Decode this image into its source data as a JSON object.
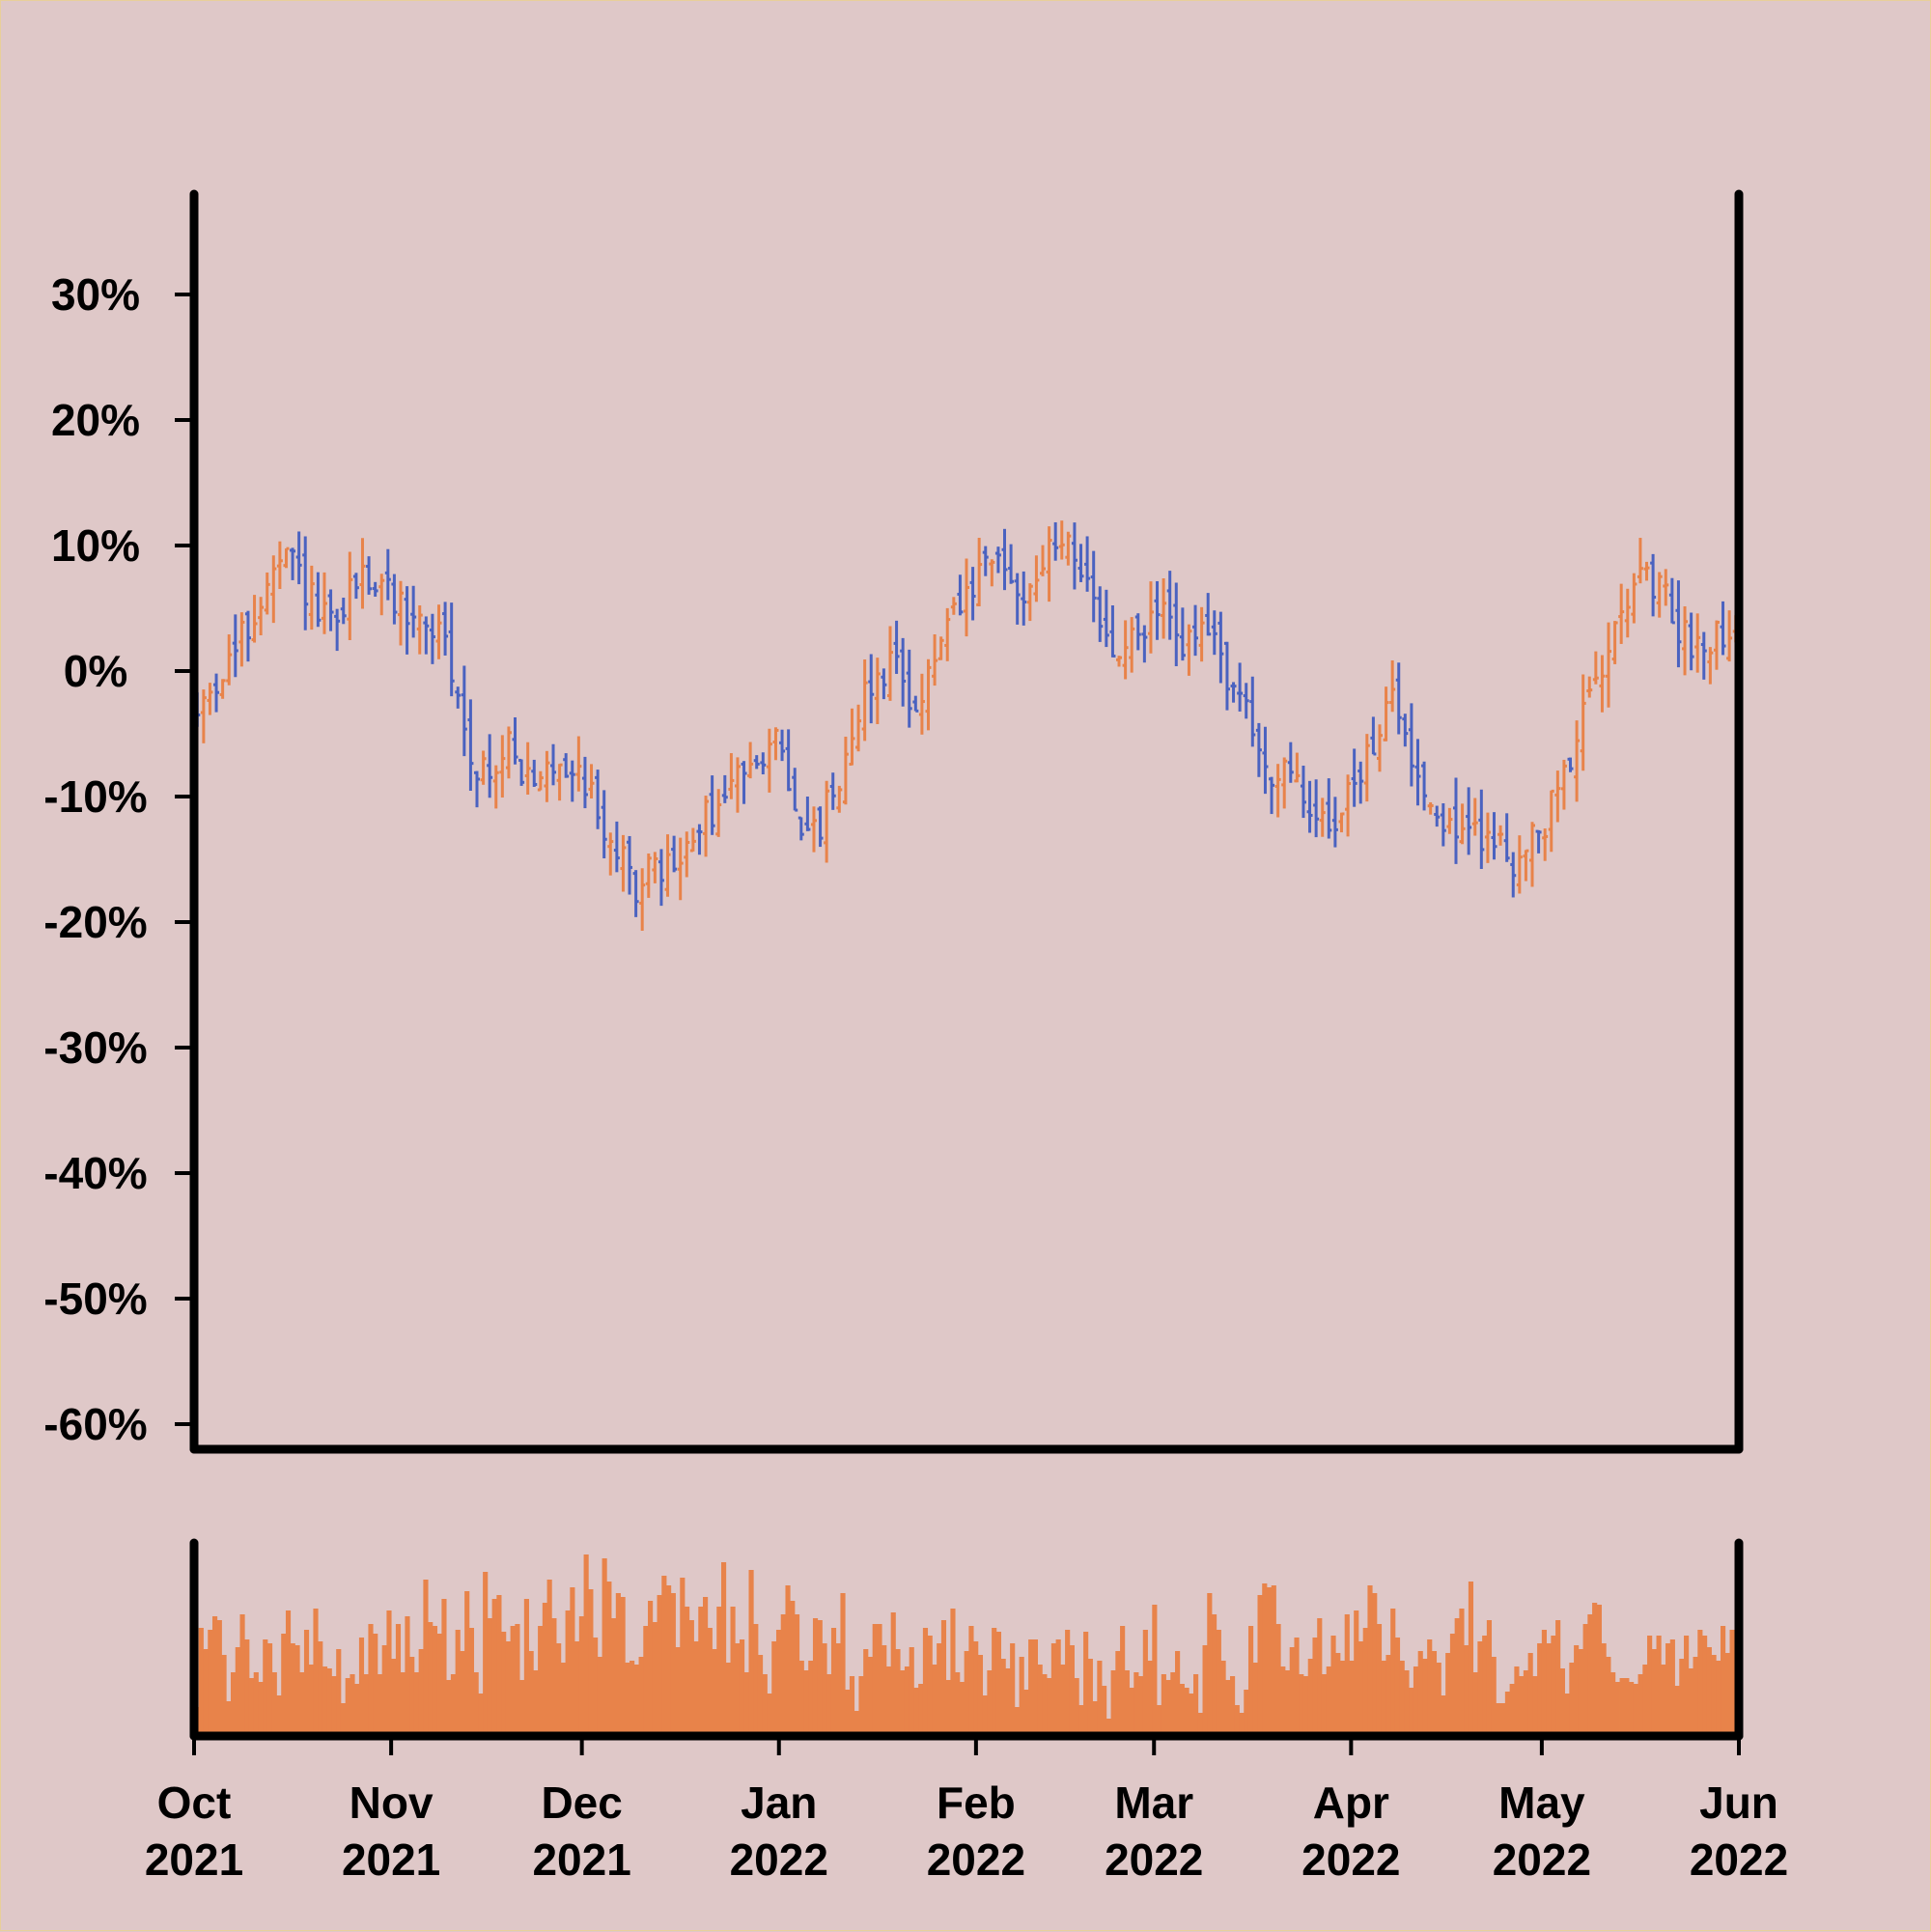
{
  "chart_data": [
    {
      "type": "ohlc",
      "title": "",
      "xlabel": "",
      "ylabel": "",
      "x_start": "2021-10-01",
      "x_end": "2022-06-01",
      "x_axis_date_format": "month-year",
      "ylim": [
        -62,
        38
      ],
      "y_ticks": [
        -60,
        -50,
        -40,
        -30,
        -20,
        -10,
        0,
        10,
        20,
        30
      ],
      "y_tick_labels": [
        "-60%",
        "-50%",
        "-40%",
        "-30%",
        "-20%",
        "-10%",
        "0%",
        "10%",
        "20%",
        "30%"
      ],
      "grid": false,
      "legend": "none",
      "colors": {
        "up": "#e8834a",
        "down": "#4a62c0"
      },
      "close_path": [
        [
          "2021-10-01",
          -4
        ],
        [
          "2021-10-04",
          -1
        ],
        [
          "2021-10-08",
          2
        ],
        [
          "2021-10-13",
          7
        ],
        [
          "2021-10-16",
          9
        ],
        [
          "2021-10-20",
          5
        ],
        [
          "2021-10-23",
          3
        ],
        [
          "2021-10-27",
          8
        ],
        [
          "2021-11-01",
          6
        ],
        [
          "2021-11-05",
          4
        ],
        [
          "2021-11-09",
          3
        ],
        [
          "2021-11-13",
          -6
        ],
        [
          "2021-11-17",
          -9
        ],
        [
          "2021-11-20",
          -5
        ],
        [
          "2021-11-23",
          -10
        ],
        [
          "2021-11-27",
          -7
        ],
        [
          "2021-12-01",
          -8
        ],
        [
          "2021-12-05",
          -13
        ],
        [
          "2021-12-09",
          -17
        ],
        [
          "2021-12-13",
          -16
        ],
        [
          "2021-12-17",
          -15
        ],
        [
          "2021-12-20",
          -12
        ],
        [
          "2021-12-24",
          -10
        ],
        [
          "2021-12-28",
          -6
        ],
        [
          "2022-01-01",
          -6
        ],
        [
          "2022-01-04",
          -11
        ],
        [
          "2022-01-06",
          -14
        ],
        [
          "2022-01-10",
          -9
        ],
        [
          "2022-01-14",
          -2
        ],
        [
          "2022-01-19",
          1
        ],
        [
          "2022-01-23",
          -3
        ],
        [
          "2022-01-27",
          3
        ],
        [
          "2022-01-31",
          6
        ],
        [
          "2022-02-04",
          9
        ],
        [
          "2022-02-08",
          6
        ],
        [
          "2022-02-12",
          9
        ],
        [
          "2022-02-16",
          11
        ],
        [
          "2022-02-19",
          5
        ],
        [
          "2022-02-23",
          1
        ],
        [
          "2022-02-27",
          3
        ],
        [
          "2022-03-02",
          5
        ],
        [
          "2022-03-06",
          2
        ],
        [
          "2022-03-10",
          3
        ],
        [
          "2022-03-15",
          -3
        ],
        [
          "2022-03-19",
          -8
        ],
        [
          "2022-03-23",
          -9
        ],
        [
          "2022-03-27",
          -12
        ],
        [
          "2022-03-31",
          -11
        ],
        [
          "2022-04-04",
          -6
        ],
        [
          "2022-04-07",
          -2
        ],
        [
          "2022-04-10",
          -6
        ],
        [
          "2022-04-14",
          -11
        ],
        [
          "2022-04-18",
          -13
        ],
        [
          "2022-04-22",
          -13
        ],
        [
          "2022-04-27",
          -15
        ],
        [
          "2022-05-01",
          -13
        ],
        [
          "2022-05-05",
          -7
        ],
        [
          "2022-05-09",
          -2
        ],
        [
          "2022-05-13",
          6
        ],
        [
          "2022-05-17",
          7
        ],
        [
          "2022-05-20",
          6
        ],
        [
          "2022-05-24",
          2
        ],
        [
          "2022-05-28",
          3
        ],
        [
          "2022-06-01",
          4
        ]
      ]
    },
    {
      "type": "bar",
      "title": "",
      "xlabel": "",
      "ylabel": "",
      "x_start": "2021-10-01",
      "x_end": "2022-06-01",
      "x_ticks": [
        "2021-10-01",
        "2021-11-01",
        "2021-12-01",
        "2022-01-01",
        "2022-02-01",
        "2022-03-01",
        "2022-04-01",
        "2022-05-01",
        "2022-06-01"
      ],
      "x_tick_labels": [
        [
          "Oct",
          "2021"
        ],
        [
          "Nov",
          "2021"
        ],
        [
          "Dec",
          "2021"
        ],
        [
          "Jan",
          "2022"
        ],
        [
          "Feb",
          "2022"
        ],
        [
          "Mar",
          "2022"
        ],
        [
          "Apr",
          "2022"
        ],
        [
          "May",
          "2022"
        ],
        [
          "Jun",
          "2022"
        ]
      ],
      "y_ticks": [],
      "ylim": [
        0,
        1
      ],
      "color": "#e8834a",
      "grid": false,
      "legend": "none",
      "values": [
        0.15,
        0.56,
        0.45,
        0.55,
        0.62,
        0.6,
        0.42,
        0.18,
        0.33,
        0.46,
        0.63,
        0.5,
        0.3,
        0.33,
        0.28,
        0.5,
        0.48,
        0.33,
        0.21,
        0.53,
        0.65,
        0.48,
        0.47,
        0.33,
        0.55,
        0.37,
        0.66,
        0.49,
        0.36,
        0.35,
        0.31,
        0.45,
        0.17,
        0.3,
        0.32,
        0.27,
        0.51,
        0.32,
        0.58,
        0.53,
        0.32,
        0.47,
        0.65,
        0.4,
        0.58,
        0.33,
        0.62,
        0.41,
        0.33,
        0.45,
        0.81,
        0.59,
        0.57,
        0.53,
        0.71,
        0.29,
        0.32,
        0.55,
        0.44,
        0.75,
        0.56,
        0.33,
        0.22,
        0.85,
        0.61,
        0.71,
        0.73,
        0.54,
        0.49,
        0.57,
        0.58,
        0.29,
        0.71,
        0.44,
        0.34,
        0.57,
        0.69,
        0.81,
        0.61,
        0.48,
        0.38,
        0.65,
        0.77,
        0.49,
        0.62,
        0.94,
        0.76,
        0.51,
        0.41,
        0.92,
        0.8,
        0.61,
        0.74,
        0.72,
        0.38,
        0.39,
        0.37,
        0.41,
        0.57,
        0.7,
        0.59,
        0.73,
        0.83,
        0.78,
        0.74,
        0.46,
        0.82,
        0.67,
        0.6,
        0.49,
        0.67,
        0.72,
        0.56,
        0.45,
        0.67,
        0.9,
        0.38,
        0.67,
        0.48,
        0.5,
        0.33,
        0.86,
        0.58,
        0.42,
        0.32,
        0.22,
        0.49,
        0.55,
        0.63,
        0.78,
        0.7,
        0.63,
        0.39,
        0.34,
        0.39,
        0.61,
        0.6,
        0.48,
        0.32,
        0.56,
        0.48,
        0.74,
        0.24,
        0.31,
        0.13,
        0.31,
        0.45,
        0.41,
        0.58,
        0.58,
        0.47,
        0.36,
        0.64,
        0.45,
        0.34,
        0.36,
        0.46,
        0.25,
        0.27,
        0.56,
        0.52,
        0.37,
        0.48,
        0.6,
        0.29,
        0.66,
        0.33,
        0.28,
        0.44,
        0.57,
        0.49,
        0.42,
        0.21,
        0.34,
        0.56,
        0.54,
        0.4,
        0.35,
        0.48,
        0.15,
        0.41,
        0.24,
        0.5,
        0.5,
        0.37,
        0.32,
        0.3,
        0.48,
        0.5,
        0.37,
        0.55,
        0.47,
        0.3,
        0.16,
        0.54,
        0.4,
        0.18,
        0.39,
        0.26,
        0.09,
        0.34,
        0.44,
        0.57,
        0.34,
        0.25,
        0.33,
        0.31,
        0.55,
        0.39,
        0.68,
        0.16,
        0.32,
        0.29,
        0.33,
        0.44,
        0.27,
        0.25,
        0.22,
        0.32,
        0.12,
        0.47,
        0.74,
        0.63,
        0.55,
        0.39,
        0.29,
        0.31,
        0.16,
        0.12,
        0.24,
        0.57,
        0.38,
        0.73,
        0.79,
        0.77,
        0.78,
        0.58,
        0.36,
        0.34,
        0.46,
        0.51,
        0.32,
        0.31,
        0.4,
        0.51,
        0.61,
        0.32,
        0.36,
        0.52,
        0.43,
        0.39,
        0.63,
        0.39,
        0.65,
        0.49,
        0.56,
        0.78,
        0.74,
        0.58,
        0.39,
        0.42,
        0.66,
        0.51,
        0.39,
        0.34,
        0.25,
        0.36,
        0.44,
        0.4,
        0.5,
        0.44,
        0.38,
        0.21,
        0.43,
        0.53,
        0.61,
        0.66,
        0.47,
        0.8,
        0.33,
        0.49,
        0.52,
        0.6,
        0.41,
        0.17,
        0.17,
        0.23,
        0.27,
        0.36,
        0.31,
        0.34,
        0.43,
        0.31,
        0.48,
        0.55,
        0.48,
        0.52,
        0.6,
        0.35,
        0.22,
        0.38,
        0.47,
        0.45,
        0.58,
        0.63,
        0.69,
        0.68,
        0.48,
        0.41,
        0.33,
        0.28,
        0.3,
        0.3,
        0.28,
        0.27,
        0.32,
        0.37,
        0.52,
        0.45,
        0.52,
        0.37,
        0.48,
        0.5,
        0.26,
        0.4,
        0.52,
        0.35,
        0.41,
        0.55,
        0.52,
        0.46,
        0.42,
        0.39,
        0.57,
        0.43,
        0.55,
        0.53
      ]
    }
  ]
}
